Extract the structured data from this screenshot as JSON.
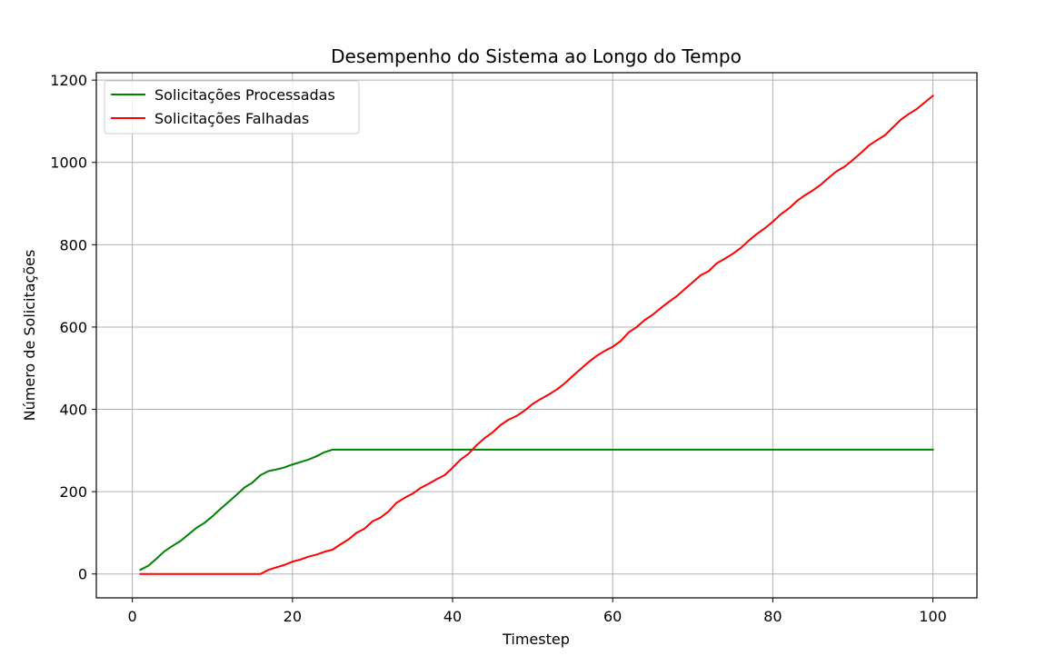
{
  "chart_data": {
    "type": "line",
    "title": "Desempenho do Sistema ao Longo do Tempo",
    "xlabel": "Timestep",
    "ylabel": "Número de Solicitações",
    "xlim": [
      -4.5,
      105.5
    ],
    "ylim": [
      -58,
      1218
    ],
    "xticks": [
      0,
      20,
      40,
      60,
      80,
      100
    ],
    "yticks": [
      0,
      200,
      400,
      600,
      800,
      1000,
      1200
    ],
    "grid": true,
    "legend_position": "upper-left",
    "series": [
      {
        "name": "Solicitações Processadas",
        "color": "#008000",
        "x": [
          1,
          2,
          3,
          4,
          5,
          6,
          7,
          8,
          9,
          10,
          11,
          12,
          13,
          14,
          15,
          16,
          17,
          18,
          19,
          20,
          21,
          22,
          23,
          24,
          25,
          100
        ],
        "y": [
          10,
          20,
          37,
          55,
          68,
          80,
          96,
          112,
          124,
          140,
          158,
          175,
          192,
          210,
          222,
          240,
          250,
          254,
          259,
          266,
          272,
          278,
          286,
          296,
          302,
          302
        ]
      },
      {
        "name": "Solicitações Falhadas",
        "color": "#ff0000",
        "x": [
          1,
          15,
          16,
          17,
          18,
          19,
          20,
          21,
          22,
          23,
          24,
          25,
          26,
          27,
          28,
          29,
          30,
          31,
          32,
          33,
          34,
          35,
          36,
          37,
          38,
          39,
          40,
          41,
          42,
          43,
          44,
          45,
          46,
          47,
          48,
          49,
          50,
          51,
          52,
          53,
          54,
          55,
          56,
          57,
          58,
          59,
          60,
          61,
          62,
          63,
          64,
          65,
          66,
          67,
          68,
          69,
          70,
          71,
          72,
          73,
          74,
          75,
          76,
          77,
          78,
          79,
          80,
          81,
          82,
          83,
          84,
          85,
          86,
          87,
          88,
          89,
          90,
          91,
          92,
          93,
          94,
          95,
          96,
          97,
          98,
          99,
          100
        ],
        "y": [
          0,
          0,
          0,
          10,
          16,
          22,
          30,
          35,
          42,
          47,
          54,
          59,
          72,
          84,
          100,
          110,
          128,
          137,
          152,
          173,
          185,
          195,
          209,
          219,
          230,
          240,
          258,
          278,
          292,
          313,
          330,
          344,
          362,
          375,
          384,
          397,
          413,
          425,
          436,
          448,
          463,
          481,
          498,
          515,
          530,
          542,
          552,
          566,
          587,
          600,
          617,
          630,
          646,
          661,
          675,
          692,
          709,
          726,
          736,
          755,
          766,
          778,
          792,
          810,
          826,
          840,
          856,
          874,
          888,
          906,
          920,
          932,
          946,
          963,
          979,
          990,
          1006,
          1023,
          1041,
          1054,
          1066,
          1085,
          1104,
          1118,
          1130,
          1146,
          1162
        ]
      }
    ]
  }
}
